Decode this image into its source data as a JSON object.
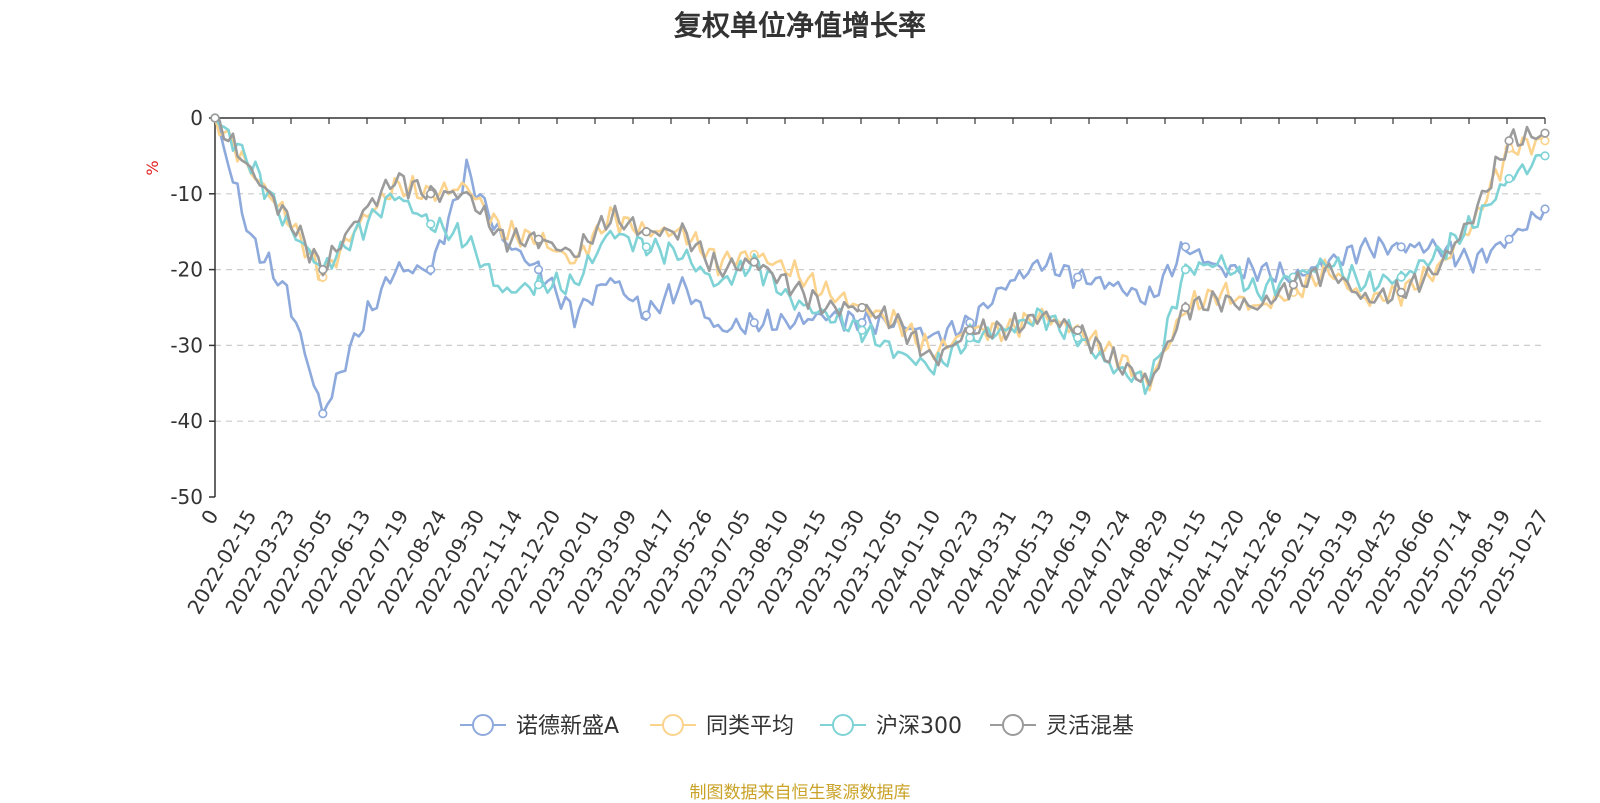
{
  "chart_data": {
    "type": "line",
    "title": "复权单位净值增长率",
    "ylabel": "%",
    "xlabel": "",
    "ylim": [
      -50,
      0
    ],
    "yticks": [
      0,
      -10,
      -20,
      -30,
      -40,
      -50
    ],
    "grid": true,
    "legend_position": "bottom",
    "x_ticks": [
      "0",
      "2022-02-15",
      "2022-03-23",
      "2022-05-05",
      "2022-06-13",
      "2022-07-19",
      "2022-08-24",
      "2022-09-30",
      "2022-11-14",
      "2022-12-20",
      "2023-02-01",
      "2023-03-09",
      "2023-04-17",
      "2023-05-26",
      "2023-07-05",
      "2023-08-10",
      "2023-09-15",
      "2023-10-30",
      "2023-12-05",
      "2024-01-10",
      "2024-02-23",
      "2024-03-31",
      "2024-05-13",
      "2024-06-19",
      "2024-07-24",
      "2024-08-29",
      "2024-10-15",
      "2024-11-20",
      "2024-12-26",
      "2025-02-11",
      "2025-03-19",
      "2025-04-25",
      "2025-06-06",
      "2025-07-14",
      "2025-08-19",
      "2025-10-27"
    ],
    "series": [
      {
        "name": "诺德新盛A",
        "color": "#8eaadc",
        "values": [
          0,
          -16,
          -23,
          -39,
          -28,
          -20,
          -20,
          -7,
          -16,
          -20,
          -26,
          -21,
          -26,
          -22,
          -28,
          -27,
          -27,
          -26,
          -27,
          -27,
          -29,
          -27,
          -22,
          -19,
          -21,
          -22,
          -24,
          -17,
          -20,
          -20,
          -21,
          -19,
          -17,
          -17,
          -17,
          -19,
          -16,
          -12
        ]
      },
      {
        "name": "同类平均",
        "color": "#fbd38d",
        "values": [
          0,
          -7,
          -13,
          -21,
          -14,
          -9,
          -10,
          -9,
          -15,
          -16,
          -19,
          -13,
          -15,
          -15,
          -19,
          -18,
          -20,
          -23,
          -25,
          -27,
          -31,
          -28,
          -28,
          -26,
          -28,
          -31,
          -35,
          -25,
          -23,
          -25,
          -23,
          -20,
          -24,
          -23,
          -20,
          -14,
          -4,
          -3
        ]
      },
      {
        "name": "沪深300",
        "color": "#7fd3d6",
        "values": [
          0,
          -6,
          -14,
          -20,
          -15,
          -10,
          -14,
          -16,
          -23,
          -22,
          -22,
          -15,
          -17,
          -18,
          -22,
          -19,
          -24,
          -26,
          -28,
          -31,
          -33,
          -29,
          -28,
          -26,
          -29,
          -33,
          -35,
          -20,
          -19,
          -23,
          -21,
          -19,
          -22,
          -21,
          -18,
          -14,
          -8,
          -5
        ]
      },
      {
        "name": "灵活混基",
        "color": "#9b9b9b",
        "values": [
          0,
          -7,
          -13,
          -20,
          -13,
          -8,
          -10,
          -10,
          -16,
          -16,
          -18,
          -13,
          -15,
          -15,
          -20,
          -19,
          -22,
          -25,
          -25,
          -27,
          -32,
          -28,
          -28,
          -26,
          -28,
          -32,
          -35,
          -25,
          -24,
          -25,
          -22,
          -20,
          -24,
          -23,
          -20,
          -13,
          -3,
          -2
        ]
      }
    ]
  },
  "footer": {
    "source": "制图数据来自恒生聚源数据库"
  }
}
